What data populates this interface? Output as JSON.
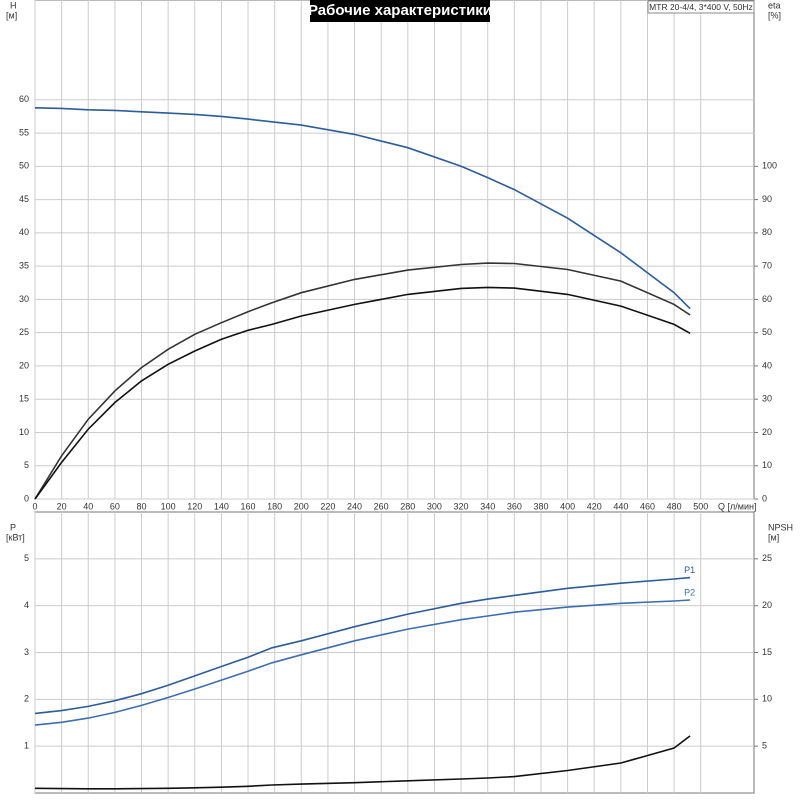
{
  "chart_data": [
    {
      "type": "line",
      "title": "Рабочие характеристики",
      "subtitle": "MTR 20-4/4, 3*400 V, 50Hz",
      "xlabel": "Q [л/мин]",
      "ylabel": "H",
      "yunit": "[м]",
      "y2label": "eta",
      "y2unit": "[%]",
      "xlim": [
        0,
        540
      ],
      "xticks": [
        0,
        20,
        40,
        60,
        80,
        100,
        120,
        140,
        160,
        180,
        200,
        220,
        240,
        260,
        280,
        300,
        320,
        340,
        360,
        380,
        400,
        420,
        440,
        460,
        480,
        500
      ],
      "ylim": [
        0,
        75
      ],
      "yticks": [
        0,
        5,
        10,
        15,
        20,
        25,
        30,
        35,
        40,
        45,
        50,
        55,
        60
      ],
      "y2lim": [
        0,
        150
      ],
      "y2ticks": [
        0,
        10,
        20,
        30,
        40,
        50,
        60,
        70,
        80,
        90,
        100
      ],
      "grid": true,
      "x": [
        0,
        20,
        40,
        60,
        80,
        100,
        120,
        140,
        160,
        178,
        200,
        240,
        280,
        320,
        340,
        360,
        400,
        440,
        480,
        492
      ],
      "series": [
        {
          "color": "#2a5d9a",
          "values": [
            58.8,
            58.7,
            58.5,
            58.4,
            58.2,
            58.0,
            57.8,
            57.5,
            57.1,
            56.7,
            56.2,
            54.8,
            52.8,
            50.0,
            48.3,
            46.5,
            42.2,
            37.0,
            31.0,
            28.6
          ]
        },
        {
          "color": "#333333",
          "axis": "y2",
          "values": [
            0,
            13,
            24,
            32.5,
            39.5,
            45,
            49.5,
            53,
            56.3,
            59,
            62,
            66,
            68.8,
            70.5,
            70.9,
            70.8,
            69,
            65.5,
            58.5,
            55.3
          ]
        },
        {
          "color": "#111111",
          "axis": "y2",
          "values": [
            0,
            11,
            21,
            29,
            35.5,
            40.5,
            44.5,
            48,
            50.7,
            52.5,
            55,
            58.5,
            61.5,
            63.3,
            63.6,
            63.4,
            61.5,
            58,
            52.5,
            49.8
          ]
        }
      ]
    },
    {
      "type": "line",
      "ylabel": "P",
      "yunit": "[кВт]",
      "y2label": "NPSH",
      "y2unit": "[м]",
      "xlim": [
        0,
        540
      ],
      "ylim": [
        0,
        6
      ],
      "yticks": [
        1,
        2,
        3,
        4,
        5
      ],
      "y2lim": [
        0,
        30
      ],
      "y2ticks": [
        5,
        10,
        15,
        20,
        25
      ],
      "grid": true,
      "x": [
        0,
        20,
        40,
        60,
        80,
        100,
        120,
        140,
        160,
        178,
        200,
        240,
        280,
        320,
        340,
        360,
        400,
        440,
        480,
        492
      ],
      "series": [
        {
          "name": "P1",
          "color": "#2a5d9a",
          "values": [
            1.7,
            1.76,
            1.85,
            1.97,
            2.12,
            2.3,
            2.5,
            2.7,
            2.9,
            3.1,
            3.25,
            3.55,
            3.82,
            4.05,
            4.14,
            4.22,
            4.37,
            4.48,
            4.57,
            4.6
          ]
        },
        {
          "name": "P2",
          "color": "#3d6fb0",
          "values": [
            1.45,
            1.51,
            1.6,
            1.72,
            1.87,
            2.04,
            2.22,
            2.41,
            2.6,
            2.78,
            2.95,
            3.25,
            3.5,
            3.7,
            3.78,
            3.86,
            3.97,
            4.05,
            4.1,
            4.12
          ]
        },
        {
          "color": "#111111",
          "axis": "y2",
          "values": [
            0.5,
            0.47,
            0.45,
            0.45,
            0.47,
            0.5,
            0.55,
            0.62,
            0.72,
            0.85,
            0.95,
            1.1,
            1.3,
            1.5,
            1.6,
            1.75,
            2.4,
            3.2,
            4.8,
            6.1
          ]
        }
      ]
    }
  ]
}
